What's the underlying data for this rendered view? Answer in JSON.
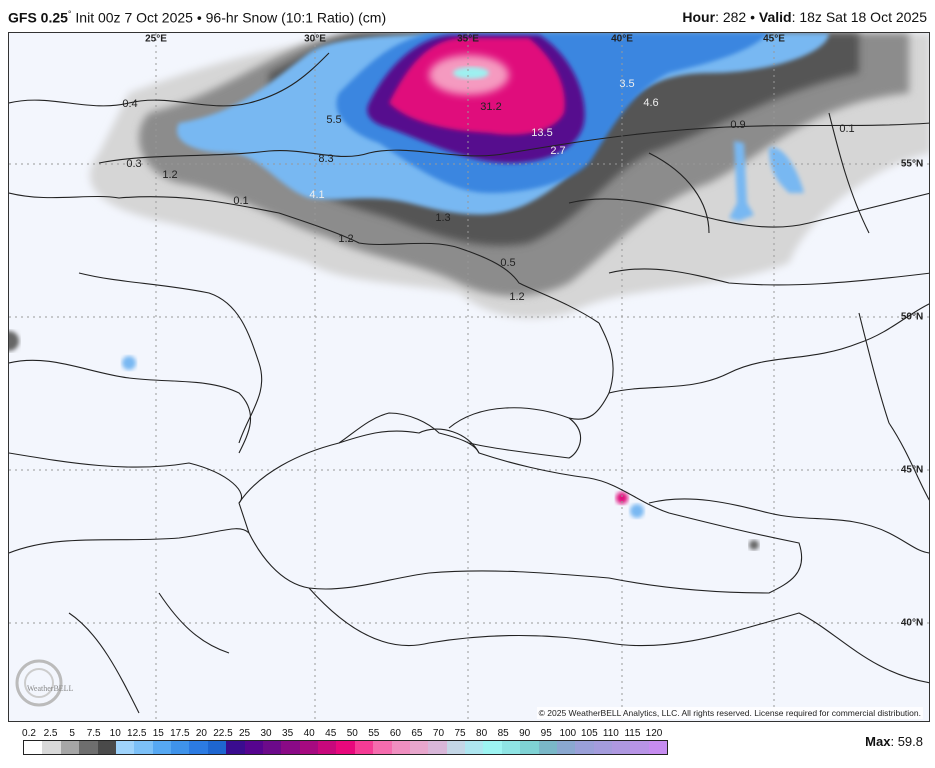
{
  "header": {
    "model": "GFS 0.25",
    "degree": "°",
    "init": " Init 00z 7 Oct 2025 • 96-hr Snow (10:1 Ratio) (cm)",
    "hour_label": "Hour",
    "hour_value": ": 282 • ",
    "valid_label": "Valid",
    "valid_value": ": 18z Sat 18 Oct 2025"
  },
  "map": {
    "lon_labels": [
      "25°E",
      "30°E",
      "35°E",
      "40°E",
      "45°E"
    ],
    "lat_labels": [
      "55°N",
      "50°N",
      "45°N",
      "40°N"
    ],
    "value_labels": [
      "0.4",
      "5.5",
      "31.2",
      "3.5",
      "4.6",
      "0.9",
      "0.1",
      "0.3",
      "1.2",
      "8.3",
      "13.5",
      "2.7",
      "0.1",
      "4.1",
      "1.3",
      "1.2",
      "0.5",
      "1.2"
    ],
    "copyright": "© 2025 WeatherBELL Analytics, LLC. All rights reserved. License required for commercial distribution.",
    "logo_text": "WeatherBELL"
  },
  "legend": {
    "labels": [
      "0.2",
      "2.5",
      "5",
      "7.5",
      "10",
      "12.5",
      "15",
      "17.5",
      "20",
      "22.5",
      "25",
      "30",
      "35",
      "40",
      "45",
      "50",
      "55",
      "60",
      "65",
      "70",
      "75",
      "80",
      "85",
      "90",
      "95",
      "100",
      "105",
      "110",
      "115",
      "120"
    ],
    "colors": [
      "#ffffff",
      "#d9d9d9",
      "#a6a6a6",
      "#6e6e6e",
      "#4a4a4a",
      "#9fd3fb",
      "#7cc0f7",
      "#56a8f2",
      "#3f93ea",
      "#2c7be2",
      "#1e66d0",
      "#3a0c8f",
      "#56048f",
      "#6c0a8a",
      "#8a0a86",
      "#a60a80",
      "#c8087c",
      "#e8087c",
      "#f53b95",
      "#f56cae",
      "#f08fc0",
      "#e8a6cc",
      "#d8b6d8",
      "#c4d6e6",
      "#aee6f0",
      "#9df4f2",
      "#8fe4e4",
      "#7fd2d4",
      "#7ab8c8",
      "#8aa8d0",
      "#9aa0d8",
      "#a49cdc",
      "#ae98e0",
      "#b894e6",
      "#c68cf0"
    ],
    "max_label": "Max",
    "max_value": ": 59.8"
  }
}
